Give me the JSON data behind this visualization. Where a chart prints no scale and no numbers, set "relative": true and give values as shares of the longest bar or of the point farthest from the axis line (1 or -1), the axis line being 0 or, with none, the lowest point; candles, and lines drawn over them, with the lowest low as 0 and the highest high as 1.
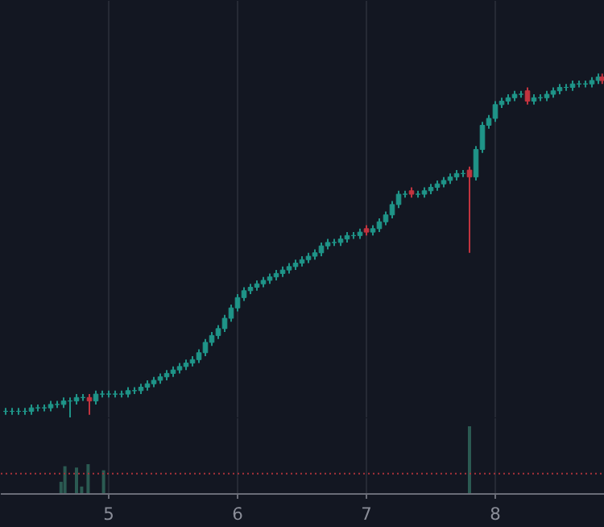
{
  "chart_data": [
    {
      "type": "candlestick",
      "relative": true,
      "grid": "x",
      "tick_labels": false,
      "xlim": [
        4.1625,
        8.85
      ],
      "xticks": [
        5,
        6,
        7,
        8
      ],
      "x": [
        4.2,
        4.25,
        4.3,
        4.35,
        4.4,
        4.45,
        4.5,
        4.55,
        4.6,
        4.65,
        4.7,
        4.75,
        4.8,
        4.85,
        4.9,
        4.95,
        5.0,
        5.05,
        5.1,
        5.15,
        5.2,
        5.25,
        5.3,
        5.35,
        5.4,
        5.45,
        5.5,
        5.55,
        5.6,
        5.65,
        5.7,
        5.75,
        5.8,
        5.85,
        5.9,
        5.95,
        6.0,
        6.05,
        6.1,
        6.15,
        6.2,
        6.25,
        6.3,
        6.35,
        6.4,
        6.45,
        6.5,
        6.55,
        6.6,
        6.65,
        6.7,
        6.75,
        6.8,
        6.85,
        6.9,
        6.95,
        7.0,
        7.05,
        7.1,
        7.15,
        7.2,
        7.25,
        7.3,
        7.35,
        7.4,
        7.45,
        7.5,
        7.55,
        7.6,
        7.65,
        7.7,
        7.75,
        7.8,
        7.85,
        7.9,
        7.95,
        8.0,
        8.05,
        8.1,
        8.15,
        8.2,
        8.25,
        8.3,
        8.35,
        8.4,
        8.45,
        8.5,
        8.55,
        8.6,
        8.65,
        8.7,
        8.75,
        8.8,
        8.83
      ],
      "ohlc": [
        [
          0.02,
          0.03,
          0.01,
          0.02
        ],
        [
          0.02,
          0.03,
          0.01,
          0.02
        ],
        [
          0.02,
          0.03,
          0.01,
          0.02
        ],
        [
          0.02,
          0.03,
          0.01,
          0.02
        ],
        [
          0.02,
          0.04,
          0.01,
          0.03
        ],
        [
          0.03,
          0.04,
          0.02,
          0.03
        ],
        [
          0.03,
          0.04,
          0.02,
          0.03
        ],
        [
          0.03,
          0.05,
          0.02,
          0.04
        ],
        [
          0.04,
          0.05,
          0.03,
          0.04
        ],
        [
          0.04,
          0.06,
          0.03,
          0.05
        ],
        [
          0.05,
          0.06,
          0,
          0.05
        ],
        [
          0.05,
          0.07,
          0.04,
          0.06
        ],
        [
          0.06,
          0.07,
          0.05,
          0.06
        ],
        [
          0.06,
          0.07,
          0.01,
          0.05
        ],
        [
          0.05,
          0.08,
          0.04,
          0.07
        ],
        [
          0.07,
          0.08,
          0.06,
          0.07
        ],
        [
          0.07,
          0.08,
          0.06,
          0.07
        ],
        [
          0.07,
          0.08,
          0.06,
          0.07
        ],
        [
          0.07,
          0.08,
          0.06,
          0.07
        ],
        [
          0.07,
          0.09,
          0.06,
          0.08
        ],
        [
          0.08,
          0.09,
          0.07,
          0.08
        ],
        [
          0.08,
          0.1,
          0.07,
          0.09
        ],
        [
          0.09,
          0.11,
          0.08,
          0.1
        ],
        [
          0.1,
          0.12,
          0.09,
          0.11
        ],
        [
          0.11,
          0.13,
          0.1,
          0.12
        ],
        [
          0.12,
          0.14,
          0.11,
          0.13
        ],
        [
          0.13,
          0.15,
          0.12,
          0.14
        ],
        [
          0.14,
          0.16,
          0.13,
          0.15
        ],
        [
          0.15,
          0.17,
          0.14,
          0.16
        ],
        [
          0.16,
          0.18,
          0.15,
          0.17
        ],
        [
          0.17,
          0.2,
          0.16,
          0.19
        ],
        [
          0.19,
          0.23,
          0.18,
          0.22
        ],
        [
          0.22,
          0.25,
          0.21,
          0.24
        ],
        [
          0.24,
          0.27,
          0.23,
          0.26
        ],
        [
          0.26,
          0.3,
          0.25,
          0.29
        ],
        [
          0.29,
          0.33,
          0.28,
          0.32
        ],
        [
          0.32,
          0.36,
          0.31,
          0.35
        ],
        [
          0.35,
          0.38,
          0.34,
          0.37
        ],
        [
          0.37,
          0.39,
          0.36,
          0.38
        ],
        [
          0.38,
          0.4,
          0.37,
          0.39
        ],
        [
          0.39,
          0.41,
          0.38,
          0.4
        ],
        [
          0.4,
          0.42,
          0.39,
          0.41
        ],
        [
          0.41,
          0.43,
          0.4,
          0.42
        ],
        [
          0.42,
          0.44,
          0.41,
          0.43
        ],
        [
          0.43,
          0.45,
          0.42,
          0.44
        ],
        [
          0.44,
          0.46,
          0.43,
          0.45
        ],
        [
          0.45,
          0.47,
          0.44,
          0.46
        ],
        [
          0.46,
          0.48,
          0.45,
          0.47
        ],
        [
          0.47,
          0.49,
          0.46,
          0.48
        ],
        [
          0.48,
          0.51,
          0.47,
          0.5
        ],
        [
          0.5,
          0.52,
          0.49,
          0.51
        ],
        [
          0.51,
          0.52,
          0.5,
          0.51
        ],
        [
          0.51,
          0.53,
          0.5,
          0.52
        ],
        [
          0.52,
          0.54,
          0.51,
          0.53
        ],
        [
          0.53,
          0.54,
          0.52,
          0.53
        ],
        [
          0.53,
          0.55,
          0.52,
          0.54
        ],
        [
          0.55,
          0.56,
          0.53,
          0.54
        ],
        [
          0.54,
          0.56,
          0.53,
          0.55
        ],
        [
          0.55,
          0.58,
          0.54,
          0.57
        ],
        [
          0.57,
          0.6,
          0.56,
          0.59
        ],
        [
          0.59,
          0.63,
          0.58,
          0.62
        ],
        [
          0.62,
          0.66,
          0.61,
          0.65
        ],
        [
          0.65,
          0.66,
          0.64,
          0.65
        ],
        [
          0.66,
          0.67,
          0.64,
          0.65
        ],
        [
          0.65,
          0.66,
          0.64,
          0.65
        ],
        [
          0.65,
          0.67,
          0.64,
          0.66
        ],
        [
          0.66,
          0.68,
          0.65,
          0.67
        ],
        [
          0.67,
          0.69,
          0.66,
          0.68
        ],
        [
          0.68,
          0.7,
          0.67,
          0.69
        ],
        [
          0.69,
          0.71,
          0.68,
          0.7
        ],
        [
          0.7,
          0.72,
          0.69,
          0.71
        ],
        [
          0.71,
          0.72,
          0.7,
          0.71
        ],
        [
          0.72,
          0.73,
          0.48,
          0.7
        ],
        [
          0.7,
          0.79,
          0.69,
          0.78
        ],
        [
          0.78,
          0.86,
          0.77,
          0.85
        ],
        [
          0.85,
          0.88,
          0.84,
          0.87
        ],
        [
          0.87,
          0.92,
          0.86,
          0.91
        ],
        [
          0.91,
          0.93,
          0.9,
          0.92
        ],
        [
          0.92,
          0.94,
          0.91,
          0.93
        ],
        [
          0.93,
          0.95,
          0.92,
          0.94
        ],
        [
          0.94,
          0.95,
          0.93,
          0.94
        ],
        [
          0.95,
          0.96,
          0.91,
          0.92
        ],
        [
          0.92,
          0.94,
          0.91,
          0.93
        ],
        [
          0.93,
          0.94,
          0.92,
          0.93
        ],
        [
          0.93,
          0.95,
          0.92,
          0.94
        ],
        [
          0.94,
          0.96,
          0.93,
          0.95
        ],
        [
          0.95,
          0.97,
          0.94,
          0.96
        ],
        [
          0.96,
          0.97,
          0.95,
          0.96
        ],
        [
          0.96,
          0.98,
          0.95,
          0.97
        ],
        [
          0.97,
          0.98,
          0.96,
          0.97
        ],
        [
          0.97,
          0.98,
          0.96,
          0.97
        ],
        [
          0.97,
          0.99,
          0.96,
          0.98
        ],
        [
          0.98,
          1.0,
          0.97,
          0.99
        ],
        [
          0.99,
          1.0,
          0.97,
          0.98
        ]
      ],
      "colors": [
        "#1f9488",
        "#1f9488",
        "#1f9488",
        "#1f9488",
        "#1f9488",
        "#1f9488",
        "#1f9488",
        "#1f9488",
        "#1f9488",
        "#1f9488",
        "#1f9488",
        "#1f9488",
        "#1f9488",
        "#c2343f",
        "#1f9488",
        "#1f9488",
        "#1f9488",
        "#1f9488",
        "#1f9488",
        "#1f9488",
        "#1f9488",
        "#1f9488",
        "#1f9488",
        "#1f9488",
        "#1f9488",
        "#1f9488",
        "#1f9488",
        "#1f9488",
        "#1f9488",
        "#1f9488",
        "#1f9488",
        "#1f9488",
        "#1f9488",
        "#1f9488",
        "#1f9488",
        "#1f9488",
        "#1f9488",
        "#1f9488",
        "#1f9488",
        "#1f9488",
        "#1f9488",
        "#1f9488",
        "#1f9488",
        "#1f9488",
        "#1f9488",
        "#1f9488",
        "#1f9488",
        "#1f9488",
        "#1f9488",
        "#1f9488",
        "#1f9488",
        "#1f9488",
        "#1f9488",
        "#1f9488",
        "#1f9488",
        "#1f9488",
        "#c2343f",
        "#1f9488",
        "#1f9488",
        "#1f9488",
        "#1f9488",
        "#1f9488",
        "#1f9488",
        "#c2343f",
        "#1f9488",
        "#1f9488",
        "#1f9488",
        "#1f9488",
        "#1f9488",
        "#1f9488",
        "#1f9488",
        "#1f9488",
        "#c2343f",
        "#1f9488",
        "#1f9488",
        "#1f9488",
        "#1f9488",
        "#1f9488",
        "#1f9488",
        "#1f9488",
        "#1f9488",
        "#c2343f",
        "#1f9488",
        "#1f9488",
        "#1f9488",
        "#1f9488",
        "#1f9488",
        "#1f9488",
        "#1f9488",
        "#1f9488",
        "#1f9488",
        "#1f9488",
        "#1f9488",
        "#c2343f"
      ]
    },
    {
      "type": "bar",
      "relative": true,
      "grid": "x",
      "tick_labels": "x",
      "xlim": [
        4.1625,
        8.85
      ],
      "xticks": [
        5,
        6,
        7,
        8
      ],
      "x": [
        4.63,
        4.66,
        4.75,
        4.79,
        4.84,
        4.96,
        7.8
      ],
      "values": [
        0.18,
        0.41,
        0.39,
        0.11,
        0.44,
        0.35,
        1.0
      ],
      "color": "#2b5a52",
      "ref_lines": [
        {
          "axis": "y",
          "value": 0.3,
          "color": "#a8323a",
          "line_style": "dotted"
        }
      ]
    }
  ]
}
